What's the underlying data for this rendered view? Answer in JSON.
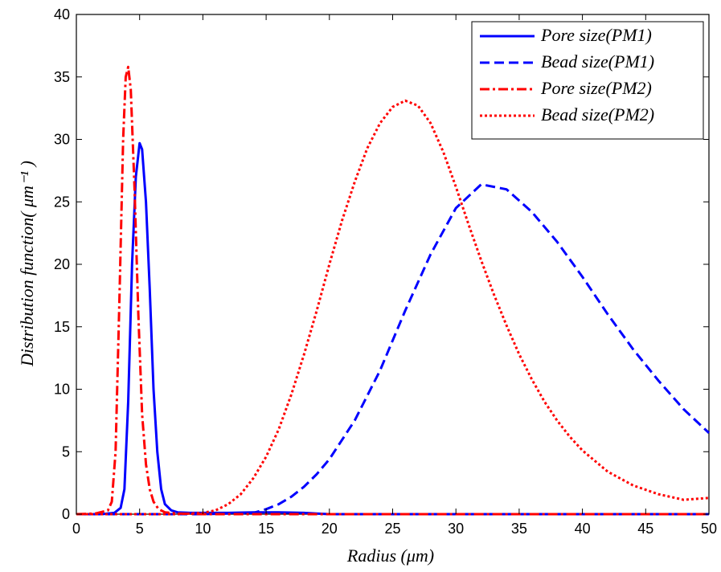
{
  "chart_data": {
    "type": "line",
    "xlabel": "Radius (μm)",
    "ylabel": "Distribution function( μm⁻¹ )",
    "xlim": [
      0,
      50
    ],
    "ylim": [
      0,
      40
    ],
    "xticks": [
      0,
      5,
      10,
      15,
      20,
      25,
      30,
      35,
      40,
      45,
      50
    ],
    "yticks": [
      0,
      5,
      10,
      15,
      20,
      25,
      30,
      35,
      40
    ],
    "grid": false,
    "legend_position": "top-right",
    "series": [
      {
        "name": "Pore size(PM1)",
        "color": "#0000ff",
        "style": "solid",
        "x": [
          0,
          2,
          3,
          3.5,
          3.8,
          4.1,
          4.4,
          4.7,
          5.0,
          5.2,
          5.5,
          5.8,
          6.1,
          6.4,
          6.7,
          7.0,
          7.5,
          8,
          9,
          10,
          12,
          14,
          16,
          18,
          19,
          20,
          30,
          40,
          50
        ],
        "y": [
          0,
          0,
          0.1,
          0.5,
          2,
          9,
          20,
          27,
          29.7,
          29.2,
          25,
          18,
          10,
          5,
          2,
          0.8,
          0.3,
          0.15,
          0.1,
          0.1,
          0.1,
          0.15,
          0.15,
          0.1,
          0.05,
          0,
          0,
          0,
          0
        ]
      },
      {
        "name": "Bead size(PM1)",
        "color": "#0000ff",
        "style": "dashed",
        "x": [
          0,
          10,
          14,
          15,
          16,
          17,
          18,
          19,
          20,
          22,
          24,
          26,
          28,
          30,
          32,
          34,
          36,
          38,
          40,
          42,
          44,
          46,
          48,
          50
        ],
        "y": [
          0,
          0,
          0.1,
          0.4,
          0.8,
          1.4,
          2.2,
          3.2,
          4.4,
          7.5,
          11.5,
          16.3,
          20.8,
          24.5,
          26.4,
          26.0,
          24.2,
          21.8,
          19.0,
          16.0,
          13.2,
          10.7,
          8.4,
          6.5
        ]
      },
      {
        "name": "Pore size(PM2)",
        "color": "#ff0000",
        "style": "dashdot",
        "x": [
          0,
          1.5,
          2.5,
          2.8,
          3.1,
          3.4,
          3.7,
          3.9,
          4.1,
          4.3,
          4.6,
          4.9,
          5.2,
          5.5,
          5.8,
          6.1,
          6.5,
          7,
          8,
          10,
          20,
          30,
          40,
          50
        ],
        "y": [
          0,
          0.05,
          0.3,
          1,
          5,
          17,
          30,
          35,
          35.8,
          34,
          26,
          16,
          8,
          4,
          2,
          1,
          0.4,
          0.15,
          0.05,
          0,
          0,
          0,
          0,
          0
        ]
      },
      {
        "name": "Bead size(PM2)",
        "color": "#ff0000",
        "style": "dotted",
        "x": [
          0,
          8,
          10,
          11,
          12,
          13,
          14,
          15,
          16,
          17,
          18,
          19,
          20,
          21,
          22,
          23,
          24,
          25,
          26,
          27,
          28,
          29,
          30,
          31,
          32,
          33,
          34,
          35,
          36,
          37,
          38,
          39,
          40,
          42,
          44,
          46,
          48,
          50
        ],
        "y": [
          0,
          0,
          0.1,
          0.3,
          0.8,
          1.6,
          2.9,
          4.6,
          6.8,
          9.6,
          12.8,
          16.3,
          20.0,
          23.5,
          26.6,
          29.3,
          31.3,
          32.6,
          33.1,
          32.7,
          31.3,
          29.0,
          26.2,
          23.2,
          20.3,
          17.6,
          15.1,
          12.8,
          10.8,
          9.0,
          7.5,
          6.2,
          5.1,
          3.4,
          2.3,
          1.6,
          1.15,
          1.3
        ]
      }
    ]
  }
}
